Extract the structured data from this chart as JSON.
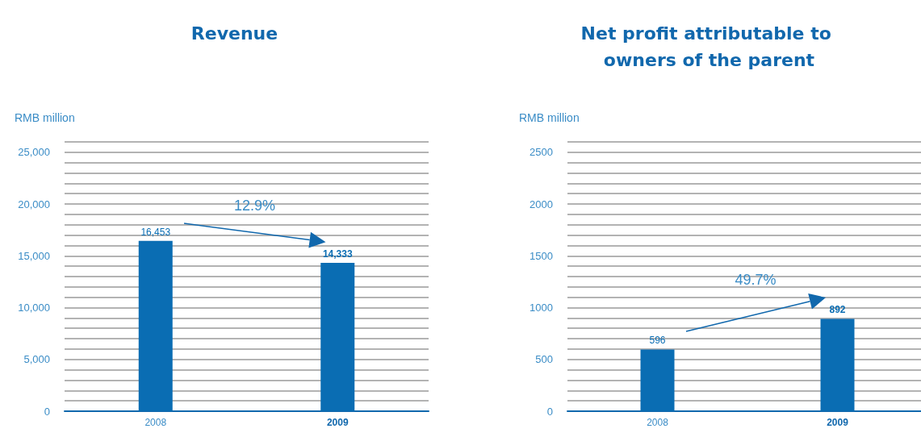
{
  "chart_data": [
    {
      "type": "bar",
      "title": "Revenue",
      "ylabel": "RMB million",
      "categories": [
        "2008",
        "2009"
      ],
      "values": [
        16453,
        14333
      ],
      "value_labels": [
        "16,453",
        "14,333"
      ],
      "color": "#0a6db3",
      "ylim": [
        0,
        26000
      ],
      "yticks": [
        0,
        {
          "value": 5000,
          "label": "5,000"
        },
        {
          "value": 10000,
          "label": "10,000"
        },
        {
          "value": 15000,
          "label": "15,000"
        },
        {
          "value": 20000,
          "label": "20,000"
        },
        {
          "value": 25000,
          "label": "25,000"
        }
      ],
      "grid": "y",
      "annotations": [
        "12.9%"
      ]
    },
    {
      "type": "bar",
      "title": "Net profit attributable to owners of the parent",
      "ylabel": "RMB million",
      "categories": [
        "2008",
        "2009"
      ],
      "values": [
        596,
        892
      ],
      "color": "#0a6db3",
      "data_labels": true,
      "ylim": [
        0,
        2600
      ],
      "yticks": [
        0,
        500,
        1000,
        1500,
        2000,
        2500
      ],
      "grid": "y",
      "annotations": [
        "49.7%"
      ]
    }
  ]
}
